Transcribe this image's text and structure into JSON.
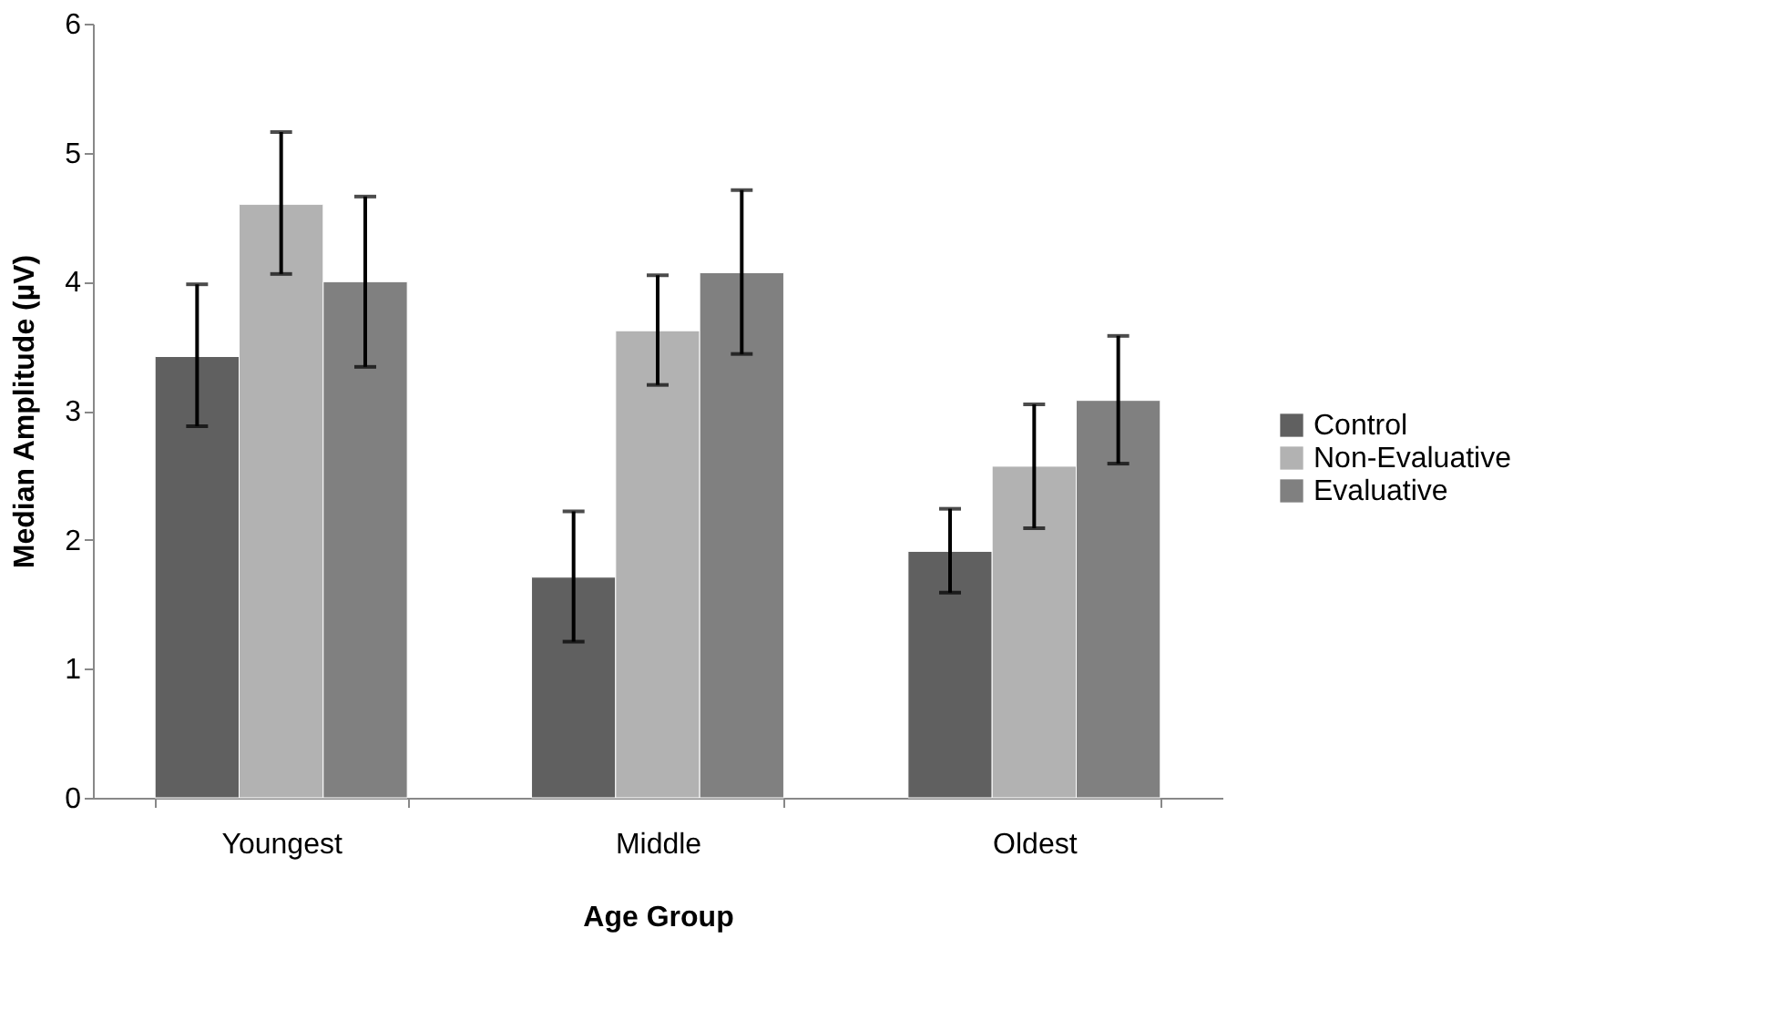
{
  "chart_data": {
    "type": "bar",
    "xlabel": "Age Group",
    "ylabel": "Median Amplitude (µV)",
    "categories": [
      "Youngest",
      "Middle",
      "Oldest"
    ],
    "series": [
      {
        "name": "Control",
        "color": "#606060",
        "values": [
          3.42,
          1.71,
          1.91
        ],
        "errors": [
          [
            2.88,
            3.98
          ],
          [
            1.21,
            2.22
          ],
          [
            1.59,
            2.24
          ]
        ]
      },
      {
        "name": "Non-Evaluative",
        "color": "#b2b2b2",
        "values": [
          4.6,
          3.62,
          2.57
        ],
        "errors": [
          [
            4.06,
            5.16
          ],
          [
            3.2,
            4.05
          ],
          [
            2.09,
            3.05
          ]
        ]
      },
      {
        "name": "Evaluative",
        "color": "#808080",
        "values": [
          4.0,
          4.07,
          3.08
        ],
        "errors": [
          [
            3.34,
            4.66
          ],
          [
            3.44,
            4.71
          ],
          [
            2.59,
            3.58
          ]
        ]
      }
    ],
    "ylim": [
      0,
      6
    ],
    "yticks": [
      0,
      1,
      2,
      3,
      4,
      5,
      6
    ],
    "grid": false,
    "legend": "right"
  }
}
